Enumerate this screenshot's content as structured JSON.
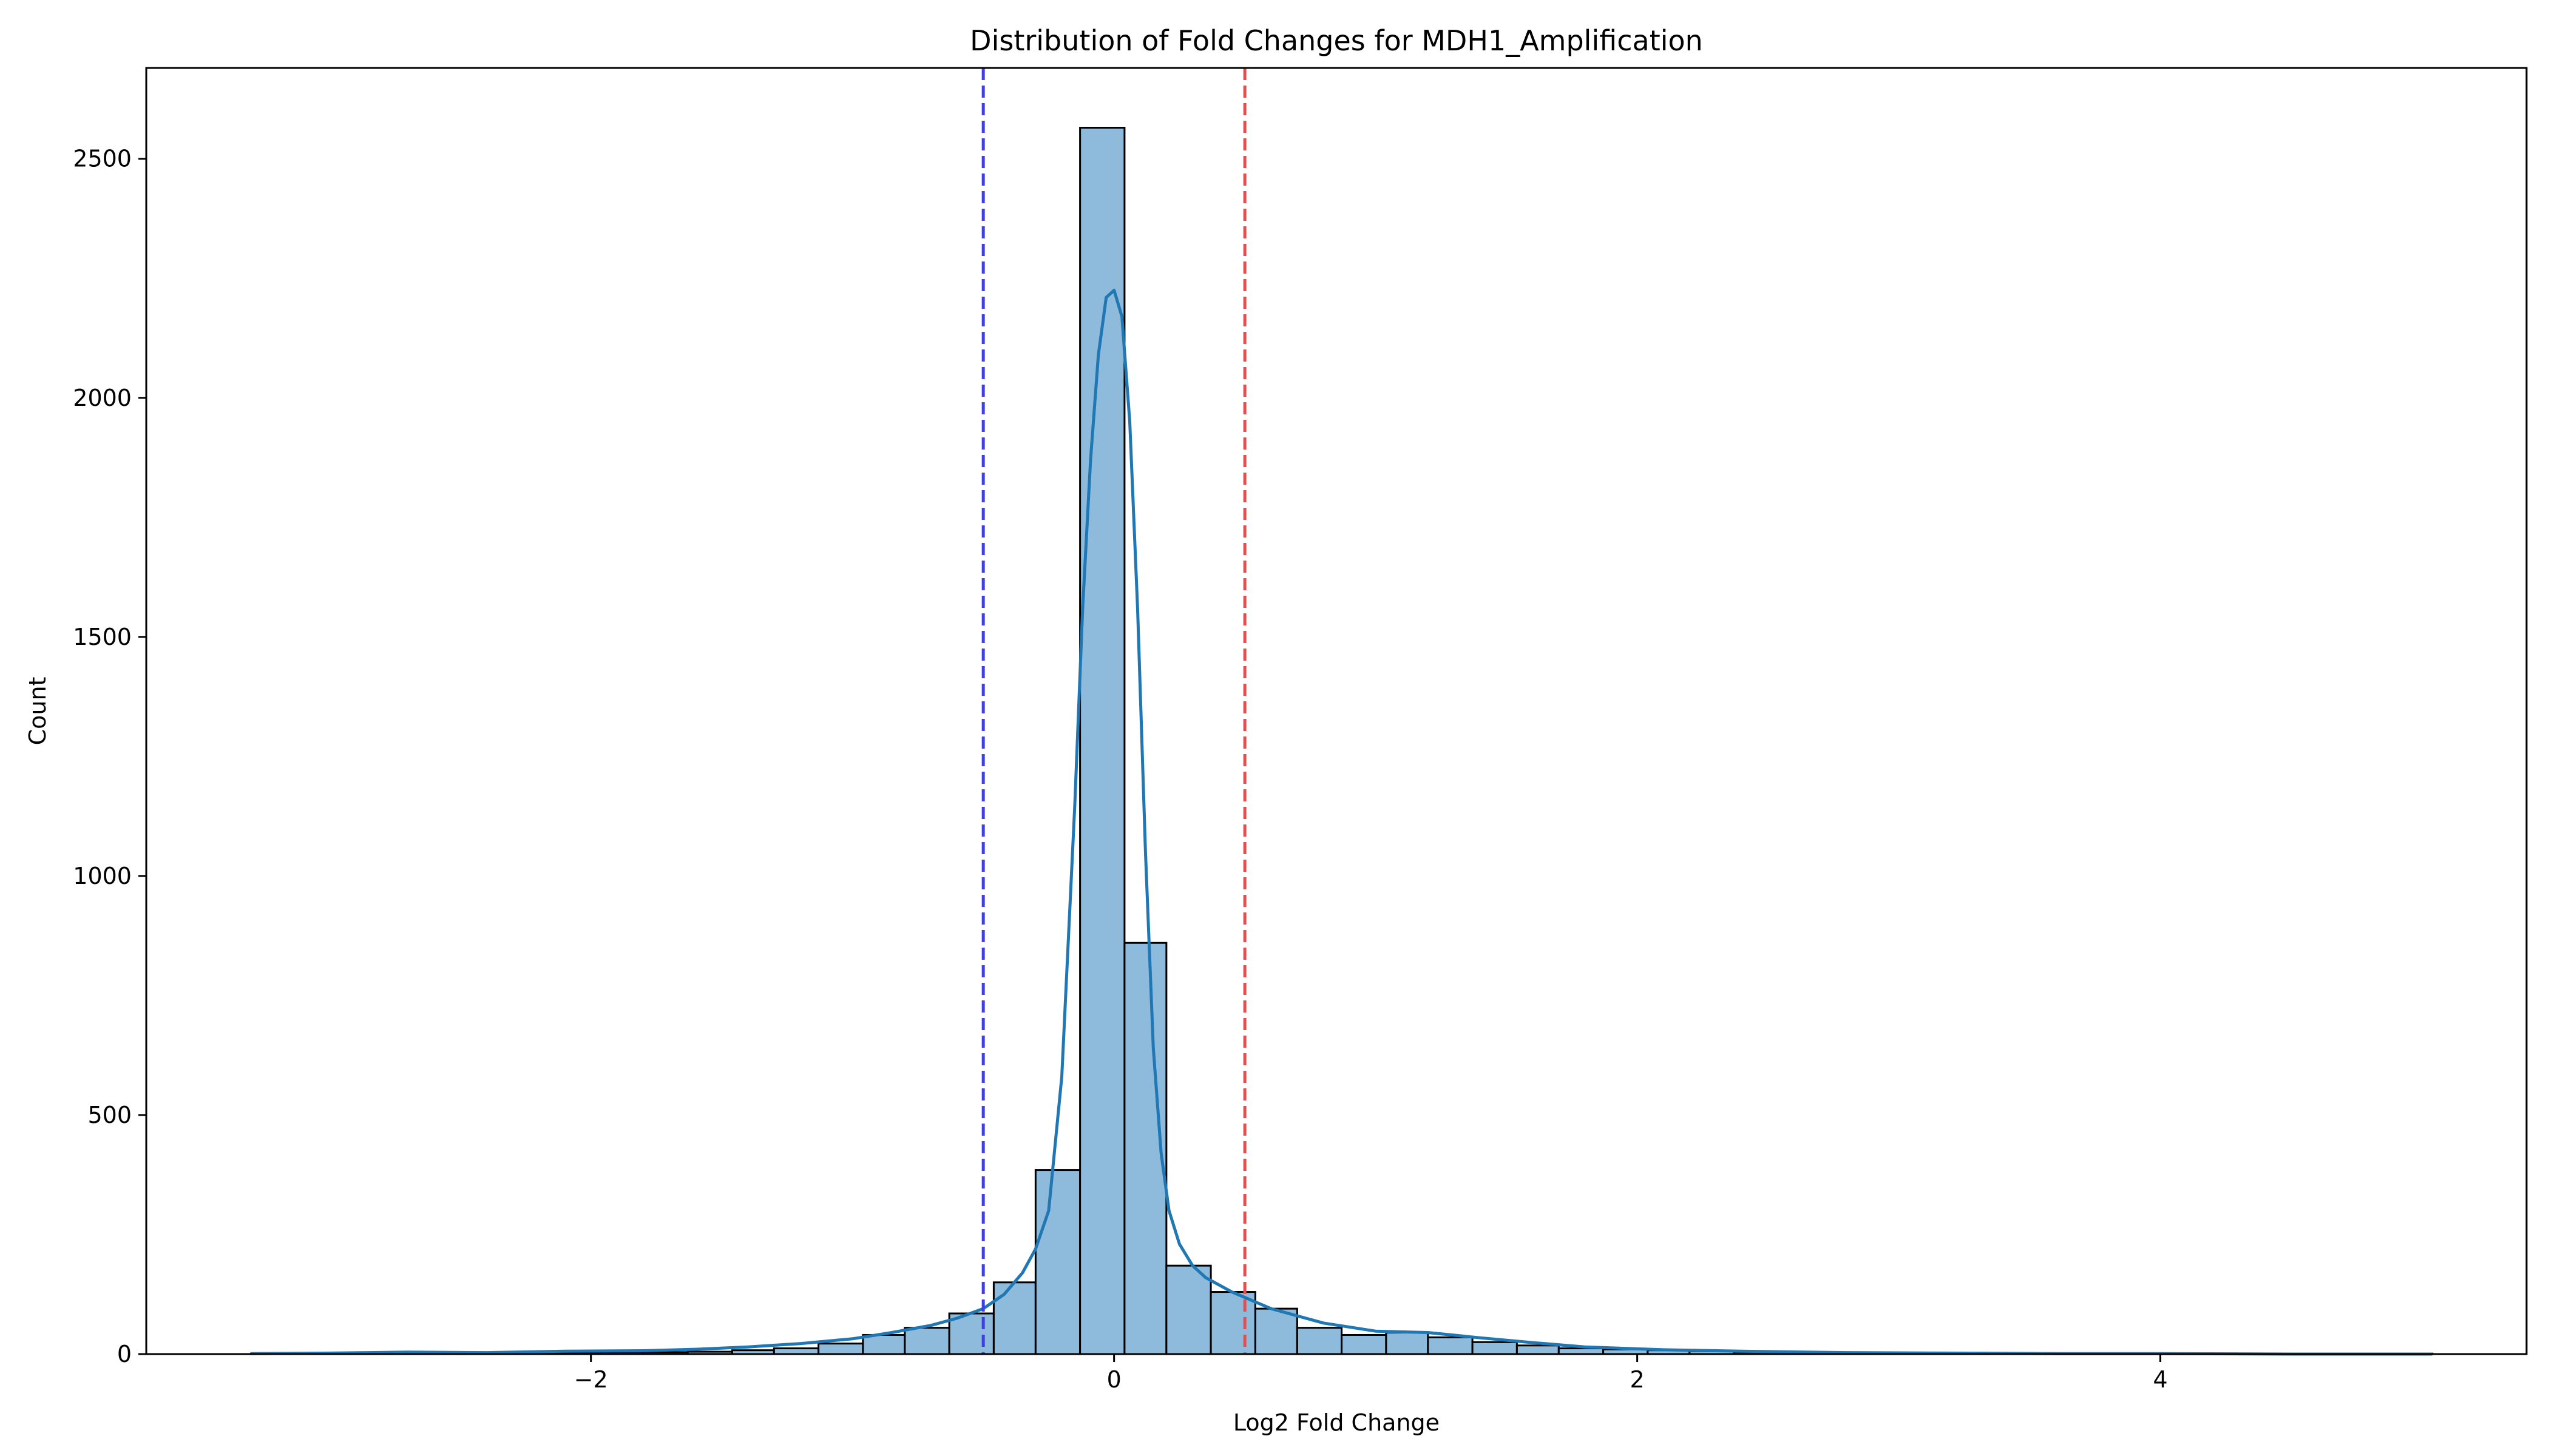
{
  "chart_data": {
    "type": "bar",
    "title": "Distribution of Fold Changes for MDH1_Amplification",
    "xlabel": "Log2 Fold Change",
    "ylabel": "Count",
    "xlim": [
      -3.7,
      5.4
    ],
    "ylim": [
      0,
      2690
    ],
    "xticks": [
      -2,
      0,
      2,
      4
    ],
    "xtick_labels": [
      "−2",
      "0",
      "2",
      "4"
    ],
    "yticks": [
      0,
      500,
      1000,
      1500,
      2000,
      2500
    ],
    "ytick_labels": [
      "0",
      "500",
      "1000",
      "1500",
      "2000",
      "2500"
    ],
    "grid": false,
    "bar_color": "#8ebadc",
    "bar_edge_color": "#000000",
    "bins": {
      "edges": [
        -3.3,
        -3.13,
        -2.96,
        -2.8,
        -2.63,
        -2.46,
        -2.3,
        -2.13,
        -1.96,
        -1.8,
        -1.63,
        -1.46,
        -1.3,
        -1.13,
        -0.96,
        -0.8,
        -0.63,
        -0.46,
        -0.3,
        -0.13,
        0.04,
        0.2,
        0.37,
        0.54,
        0.7,
        0.87,
        1.04,
        1.2,
        1.37,
        1.54,
        1.7,
        1.87,
        2.04,
        2.2,
        2.37,
        2.54,
        2.7,
        2.87,
        3.04,
        3.2,
        3.37,
        3.54,
        3.7,
        3.87,
        4.04,
        4.2,
        4.37,
        4.54,
        4.7,
        4.87,
        5.04
      ],
      "counts": [
        1,
        0,
        1,
        2,
        1,
        1,
        1,
        3,
        4,
        4,
        5,
        8,
        12,
        22,
        40,
        55,
        85,
        150,
        385,
        2565,
        860,
        185,
        130,
        95,
        55,
        40,
        45,
        35,
        25,
        18,
        12,
        10,
        8,
        6,
        4,
        3,
        2,
        2,
        1,
        1,
        1,
        1,
        1,
        0,
        1,
        0,
        1,
        0,
        0,
        1
      ]
    },
    "kde": {
      "name": "",
      "color": "#1f77b4",
      "x": [
        -3.3,
        -3.0,
        -2.7,
        -2.4,
        -2.1,
        -1.8,
        -1.6,
        -1.4,
        -1.2,
        -1.0,
        -0.85,
        -0.7,
        -0.6,
        -0.5,
        -0.42,
        -0.35,
        -0.3,
        -0.25,
        -0.2,
        -0.15,
        -0.12,
        -0.09,
        -0.06,
        -0.03,
        0.0,
        0.03,
        0.06,
        0.09,
        0.12,
        0.15,
        0.18,
        0.21,
        0.25,
        0.3,
        0.35,
        0.45,
        0.6,
        0.8,
        1.0,
        1.2,
        1.4,
        1.6,
        1.8,
        2.1,
        2.4,
        2.8,
        3.2,
        3.6,
        4.0,
        4.5,
        5.04
      ],
      "y": [
        1,
        2,
        4,
        3,
        6,
        7,
        10,
        15,
        22,
        32,
        45,
        60,
        75,
        95,
        125,
        170,
        220,
        300,
        580,
        1150,
        1560,
        1870,
        2090,
        2210,
        2225,
        2170,
        1950,
        1560,
        1050,
        640,
        420,
        300,
        230,
        185,
        160,
        130,
        95,
        65,
        48,
        45,
        34,
        24,
        15,
        9,
        6,
        3,
        2,
        1,
        1,
        0,
        0
      ]
    },
    "reference_lines": [
      {
        "x": -0.5,
        "color": "#4040e0",
        "style": "dashed"
      },
      {
        "x": 0.5,
        "color": "#e84c4c",
        "style": "dashed"
      }
    ]
  }
}
